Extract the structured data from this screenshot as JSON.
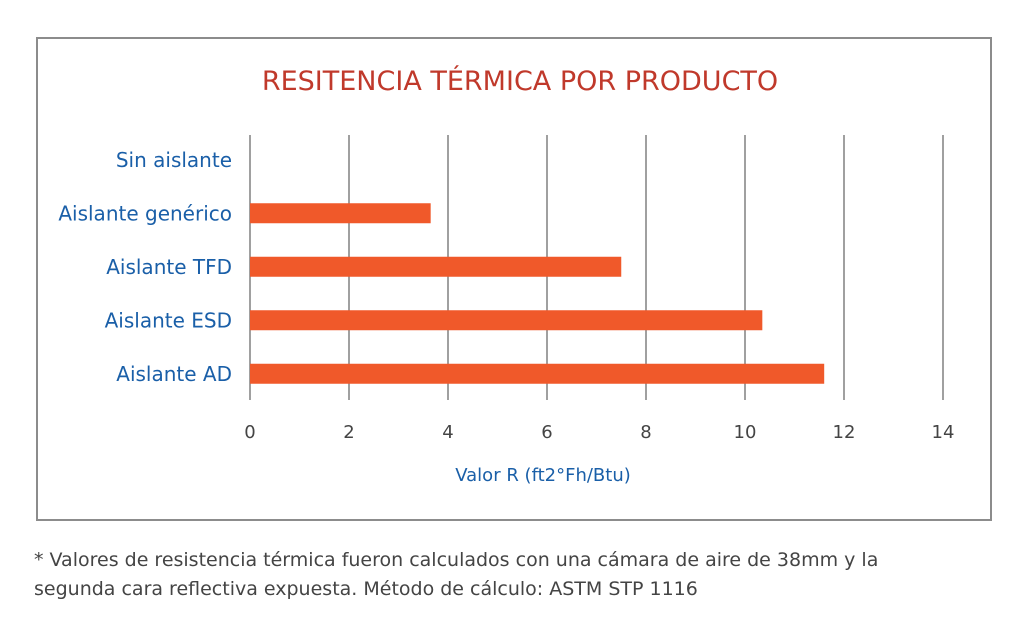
{
  "chart_data": {
    "type": "bar",
    "orientation": "horizontal",
    "title": "RESITENCIA TÉRMICA POR PRODUCTO",
    "xlabel": "Valor R (ft2°Fh/Btu)",
    "ylabel": "",
    "categories": [
      "Sin aislante",
      "Aislante genérico",
      "Aislante TFD",
      "Aislante ESD",
      "Aislante AD"
    ],
    "values": [
      0,
      3.65,
      7.5,
      10.35,
      11.6
    ],
    "xlim": [
      0,
      14
    ],
    "xticks": [
      "0",
      "2",
      "4",
      "6",
      "8",
      "10",
      "12",
      "14"
    ],
    "grid": true,
    "legend": "none"
  },
  "footnote": {
    "line1": "* Valores de resistencia térmica fueron calculados con una cámara de aire de 38mm y la",
    "line2": "segunda cara reflectiva expuesta. Método de cálculo: ASTM STP 1116"
  },
  "colors": {
    "bar": "#f0592a",
    "title": "#c0392b",
    "category_text": "#1a5fa8",
    "axis_title": "#1a5fa8",
    "tick_text": "#444444",
    "grid": "#a0a0a0",
    "frame": "#8c8c8c",
    "footnote": "#444444"
  }
}
